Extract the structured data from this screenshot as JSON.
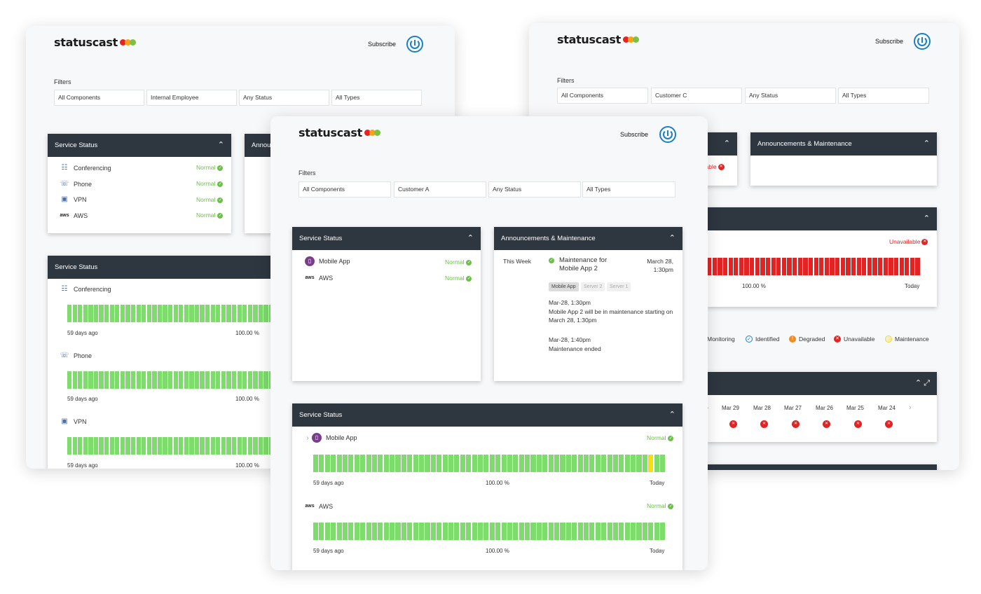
{
  "colors": {
    "header_dark": "#2e3640",
    "normal_green": "#6cc04a",
    "bar_green": "#7ddc6c",
    "unavailable_red": "#e02424",
    "degraded_yellow": "#f4e011",
    "brand_blue": "#1b7fc4"
  },
  "brand": "statuscast",
  "subscribe_label": "Subscribe",
  "filters_label": "Filters",
  "window_left": {
    "filters": [
      "All Components",
      "Internal Employee",
      "Any Status",
      "All Types"
    ],
    "service_status": {
      "title": "Service Status",
      "items": [
        {
          "name": "Conferencing",
          "icon": "conferencing-icon",
          "status": "Normal"
        },
        {
          "name": "Phone",
          "icon": "phone-icon",
          "status": "Normal"
        },
        {
          "name": "VPN",
          "icon": "vpn-icon",
          "status": "Normal"
        },
        {
          "name": "AWS",
          "icon": "aws-icon",
          "status": "Normal"
        }
      ]
    },
    "announcements_title_partial": "Annou",
    "history": {
      "title": "Service Status",
      "items": [
        {
          "name": "Conferencing",
          "start": "59 days ago",
          "uptime": "100.00 %"
        },
        {
          "name": "Phone",
          "start": "59 days ago",
          "uptime": "100.00 %"
        },
        {
          "name": "VPN",
          "start": "59 days ago",
          "uptime": "100.00 %"
        }
      ]
    }
  },
  "window_right": {
    "filters": [
      "All Components",
      "Customer C",
      "Any Status",
      "All Types"
    ],
    "partial_status": "ailable",
    "announcements_title": "Announcements & Maintenance",
    "history": {
      "status": "Unavailable",
      "uptime": "100.00 %",
      "end": "Today"
    },
    "legend": [
      {
        "label": "Monitoring",
        "icon": "monitoring-icon"
      },
      {
        "label": "Identified",
        "icon": "identified-icon",
        "color": "#1b7fc4"
      },
      {
        "label": "Degraded",
        "icon": "degraded-icon",
        "color": "#f28c1f"
      },
      {
        "label": "Unavailable",
        "icon": "unavailable-icon",
        "color": "#e02424"
      },
      {
        "label": "Maintenance",
        "icon": "maintenance-icon",
        "color": "#f4d31f"
      }
    ],
    "calendar_dates": [
      "Mar 29",
      "Mar 28",
      "Mar 27",
      "Mar 26",
      "Mar 25",
      "Mar 24"
    ]
  },
  "window_center": {
    "filters": [
      "All Components",
      "Customer A",
      "Any Status",
      "All Types"
    ],
    "service_status": {
      "title": "Service Status",
      "items": [
        {
          "name": "Mobile App",
          "icon": "mobile-app-icon",
          "status": "Normal"
        },
        {
          "name": "AWS",
          "icon": "aws-icon",
          "status": "Normal"
        }
      ]
    },
    "announcements": {
      "title": "Announcements & Maintenance",
      "period": "This Week",
      "event_title": "Maintenance for Mobile App 2",
      "event_date": "March 28, 1:30pm",
      "tags": [
        "Mobile App",
        "Server 2",
        "Server 1"
      ],
      "updates": [
        {
          "time": "Mar-28, 1:30pm",
          "text": "Mobile App 2 will be in maintenance starting on March 28, 1:30pm"
        },
        {
          "time": "Mar-28, 1:40pm",
          "text": "Maintenance ended"
        }
      ]
    },
    "history": {
      "title": "Service Status",
      "items": [
        {
          "name": "Mobile App",
          "status": "Normal",
          "start": "59 days ago",
          "uptime": "100.00 %",
          "end": "Today"
        },
        {
          "name": "AWS",
          "status": "Normal",
          "start": "59 days ago",
          "uptime": "100.00 %",
          "end": "Today"
        }
      ]
    }
  }
}
